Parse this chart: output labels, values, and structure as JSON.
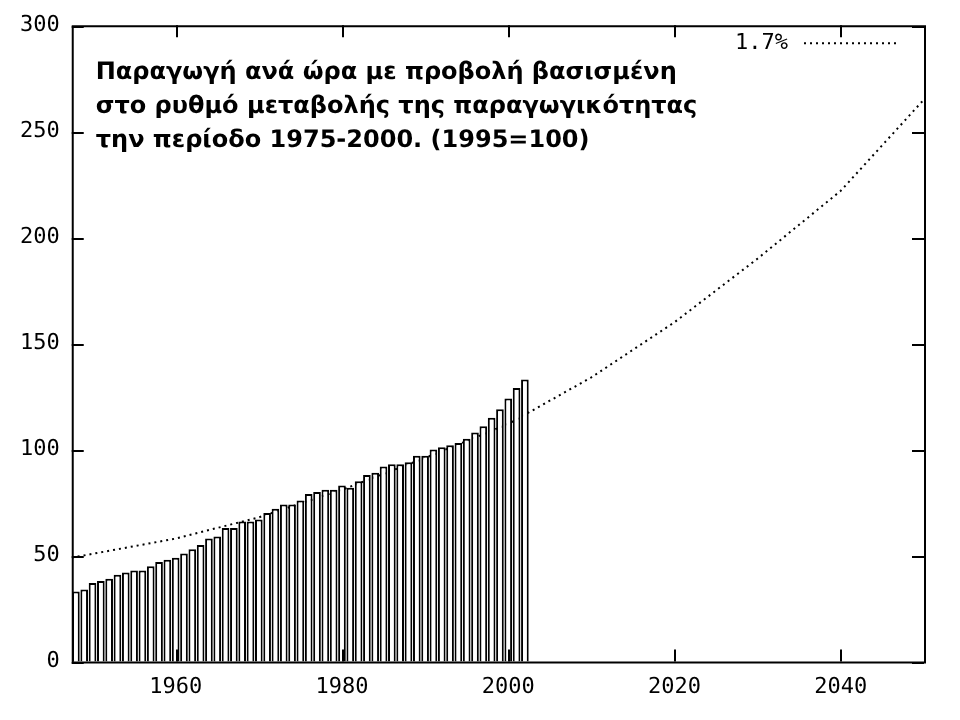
{
  "chart_data": {
    "type": "bar",
    "title": "Παραγωγή ανά ώρα με προβολή βασισμένη\nστο ρυθμό μεταβολής της παραγωγικότητας\nτην περίοδο 1975-2000. (1995=100)",
    "xlim": [
      1947.5,
      2050
    ],
    "xticks": [
      1960,
      1980,
      2000,
      2020,
      2040
    ],
    "ylim": [
      0,
      300
    ],
    "yticks": [
      0,
      50,
      100,
      150,
      200,
      250,
      300
    ],
    "grid": false,
    "legend": "top right",
    "series": [
      {
        "color": "#000000",
        "x": [
          1948,
          1949,
          1950,
          1951,
          1952,
          1953,
          1954,
          1955,
          1956,
          1957,
          1958,
          1959,
          1960,
          1961,
          1962,
          1963,
          1964,
          1965,
          1966,
          1967,
          1968,
          1969,
          1970,
          1971,
          1972,
          1973,
          1974,
          1975,
          1976,
          1977,
          1978,
          1979,
          1980,
          1981,
          1982,
          1983,
          1984,
          1985,
          1986,
          1987,
          1988,
          1989,
          1990,
          1991,
          1992,
          1993,
          1994,
          1995,
          1996,
          1997,
          1998,
          1999,
          2000,
          2001,
          2002
        ],
        "values": [
          33,
          34,
          37,
          38,
          39,
          41,
          42,
          43,
          43,
          45,
          47,
          48,
          49,
          51,
          53,
          55,
          58,
          59,
          63,
          63,
          66,
          66,
          67,
          70,
          72,
          74,
          74,
          76,
          79,
          80,
          81,
          81,
          83,
          82,
          85,
          88,
          89,
          92,
          93,
          93,
          94,
          97,
          97,
          100,
          101,
          102,
          103,
          105,
          108,
          111,
          115,
          119,
          124,
          129,
          133
        ]
      },
      {
        "type": "line",
        "name": "1.7%",
        "color": "#000000",
        "line_style": "dotted",
        "marker": "none",
        "x": [
          1947.5,
          1960,
          1970,
          1980,
          1990,
          2000,
          2010,
          2020,
          2030,
          2040,
          2050
        ],
        "values": [
          49,
          58,
          68,
          81,
          96,
          112,
          134,
          160,
          190,
          222,
          265
        ]
      }
    ]
  }
}
